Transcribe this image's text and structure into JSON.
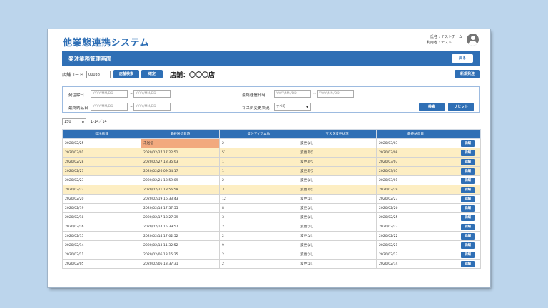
{
  "app": {
    "title": "他業態連携システム",
    "user": {
      "name_label": "氏名 :",
      "name_value": "テストチーム",
      "role_label": "利用者 :",
      "role_value": "テスト"
    }
  },
  "header": {
    "title": "発注業務管理画面",
    "back_label": "戻る"
  },
  "store": {
    "code_label": "店舗コード",
    "code_value": "00038",
    "search_label": "店舗検索",
    "confirm_label": "確定",
    "name_text": "店舗：〇〇〇店",
    "new_order_label": "新規発注"
  },
  "filters": {
    "order_date_label": "発注締日",
    "order_date_from": "YYYY/MM/DD",
    "order_date_to": "YYYY/MM/DD",
    "delivery_date_label": "最終納品日",
    "delivery_date_from": "YYYY/MM/DD",
    "delivery_date_to": "YYYY/MM/DD",
    "last_sent_label": "最終送信日時",
    "last_sent_from": "YYYY/MM/DD",
    "last_sent_to": "YYYY/MM/DD",
    "master_change_label": "マスタ変更状況",
    "master_change_value": "すべて",
    "tilde": "~",
    "search_label": "検索",
    "reset_label": "リセット"
  },
  "pager": {
    "per_page": "150",
    "range": "1-14／14"
  },
  "table": {
    "columns": [
      "発注締日",
      "最終送信日時",
      "発注アイテム数",
      "マスタ変更状況",
      "最終納品日",
      ""
    ],
    "detail_label": "詳細",
    "rows": [
      {
        "date": "2020/02/25",
        "sent": "未送信",
        "items": "2",
        "master": "変更なし",
        "delivery": "2020/03/03",
        "highlight": false,
        "pending": true
      },
      {
        "date": "2020/03/01",
        "sent": "2020/02/27 17:22:51",
        "items": "51",
        "master": "変更あり",
        "delivery": "2020/03/08",
        "highlight": true,
        "pending": false
      },
      {
        "date": "2020/02/28",
        "sent": "2020/02/27 18:35:03",
        "items": "1",
        "master": "変更あり",
        "delivery": "2020/03/07",
        "highlight": true,
        "pending": false
      },
      {
        "date": "2020/02/27",
        "sent": "2020/02/26 09:54:17",
        "items": "1",
        "master": "変更あり",
        "delivery": "2020/03/05",
        "highlight": true,
        "pending": false
      },
      {
        "date": "2020/02/23",
        "sent": "2020/02/21 18:59:09",
        "items": "2",
        "master": "変更なし",
        "delivery": "2020/03/01",
        "highlight": false,
        "pending": false
      },
      {
        "date": "2020/02/22",
        "sent": "2020/02/21 18:56:59",
        "items": "3",
        "master": "変更あり",
        "delivery": "2020/02/29",
        "highlight": true,
        "pending": false
      },
      {
        "date": "2020/02/20",
        "sent": "2020/02/19 16:33:43",
        "items": "12",
        "master": "変更なし",
        "delivery": "2020/02/27",
        "highlight": false,
        "pending": false
      },
      {
        "date": "2020/02/19",
        "sent": "2020/02/18 17:57:55",
        "items": "8",
        "master": "変更なし",
        "delivery": "2020/02/26",
        "highlight": false,
        "pending": false
      },
      {
        "date": "2020/02/18",
        "sent": "2020/02/17 18:27:39",
        "items": "3",
        "master": "変更なし",
        "delivery": "2020/02/25",
        "highlight": false,
        "pending": false
      },
      {
        "date": "2020/02/16",
        "sent": "2020/02/14 15:39:57",
        "items": "2",
        "master": "変更なし",
        "delivery": "2020/02/23",
        "highlight": false,
        "pending": false
      },
      {
        "date": "2020/02/15",
        "sent": "2020/02/14 17:02:52",
        "items": "2",
        "master": "変更なし",
        "delivery": "2020/02/22",
        "highlight": false,
        "pending": false
      },
      {
        "date": "2020/02/14",
        "sent": "2020/02/13 11:32:52",
        "items": "9",
        "master": "変更なし",
        "delivery": "2020/02/21",
        "highlight": false,
        "pending": false
      },
      {
        "date": "2020/02/11",
        "sent": "2020/02/06 13:15:25",
        "items": "2",
        "master": "変更なし",
        "delivery": "2020/02/13",
        "highlight": false,
        "pending": false
      },
      {
        "date": "2020/02/05",
        "sent": "2020/02/06 13:37:31",
        "items": "2",
        "master": "変更なし",
        "delivery": "2020/02/14",
        "highlight": false,
        "pending": false
      }
    ]
  },
  "colors": {
    "background": "#bcd5ec",
    "primary": "#2f6fb5",
    "row_highlight": "#fdeec3",
    "pending": "#f2a97e"
  }
}
